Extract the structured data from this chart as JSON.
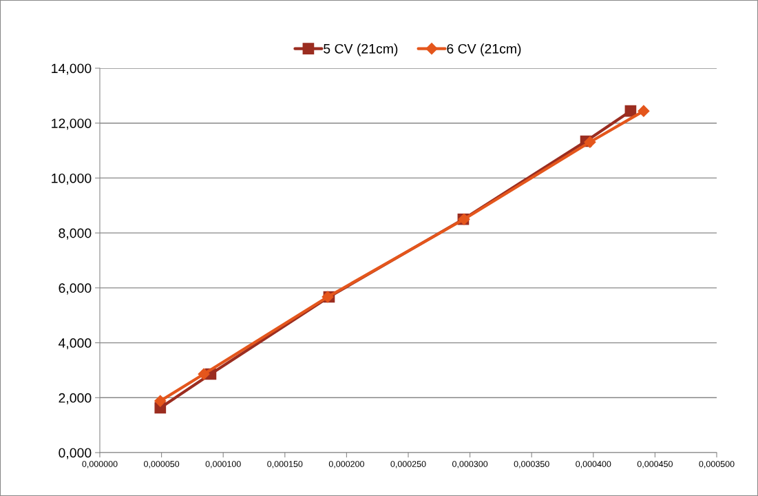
{
  "chart_data": {
    "type": "line",
    "series": [
      {
        "name": "5 CV (21cm)",
        "color": "#9b2d20",
        "marker": "square",
        "x": [
          4.9e-05,
          8.98e-05,
          0.0001858,
          0.0002946,
          0.000394,
          0.0004302
        ],
        "values": [
          1.63,
          2.86,
          5.67,
          8.5,
          11.34,
          12.44
        ]
      },
      {
        "name": "6 CV (21cm)",
        "color": "#e4561c",
        "marker": "diamond",
        "x": [
          4.9e-05,
          8.43e-05,
          0.0001847,
          0.0002952,
          0.0003973,
          0.0004408
        ],
        "values": [
          1.88,
          2.86,
          5.67,
          8.5,
          11.31,
          12.44
        ]
      }
    ],
    "xlim": [
      0,
      0.0005
    ],
    "xticks": [
      {
        "value": 0,
        "label": "0,000000"
      },
      {
        "value": 5e-05,
        "label": "0,000050"
      },
      {
        "value": 0.0001,
        "label": "0,000100"
      },
      {
        "value": 0.00015,
        "label": "0,000150"
      },
      {
        "value": 0.0002,
        "label": "0,000200"
      },
      {
        "value": 0.00025,
        "label": "0,000250"
      },
      {
        "value": 0.0003,
        "label": "0,000300"
      },
      {
        "value": 0.00035,
        "label": "0,000350"
      },
      {
        "value": 0.0004,
        "label": "0,000400"
      },
      {
        "value": 0.00045,
        "label": "0,000450"
      },
      {
        "value": 0.0005,
        "label": "0,000500"
      }
    ],
    "ylim": [
      0,
      14
    ],
    "yticks": [
      {
        "value": 0,
        "label": "0,000"
      },
      {
        "value": 2,
        "label": "2,000"
      },
      {
        "value": 4,
        "label": "4,000"
      },
      {
        "value": 6,
        "label": "6,000"
      },
      {
        "value": 8,
        "label": "8,000"
      },
      {
        "value": 10,
        "label": "10,000"
      },
      {
        "value": 12,
        "label": "12,000"
      },
      {
        "value": 14,
        "label": "14,000"
      }
    ],
    "grid": "y",
    "legend": "top",
    "line_style": "solid"
  }
}
